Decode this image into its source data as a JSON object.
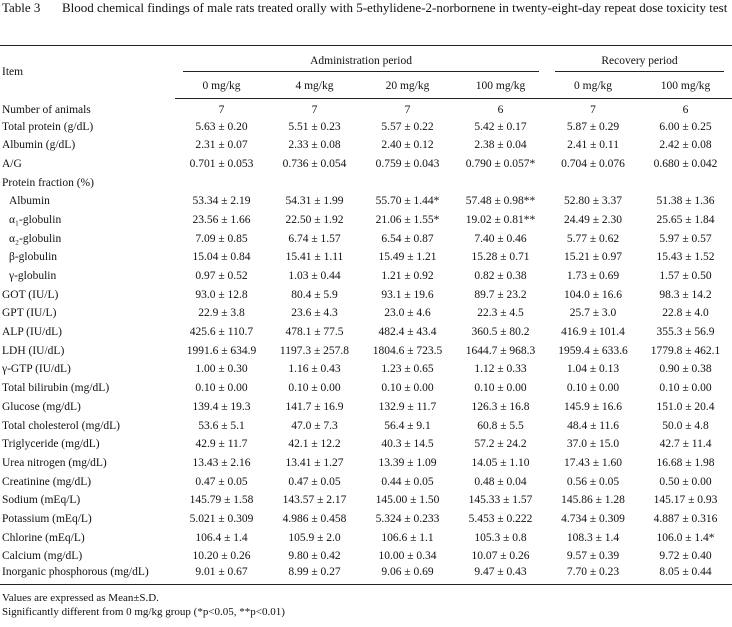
{
  "header": {
    "label": "Table 3",
    "caption": "Blood chemical findings of male rats treated orally with 5-ethylidene-2-norbornene in twenty-eight-day repeat dose toxicity test"
  },
  "table": {
    "item_header": "Item",
    "groups": [
      "Administration period",
      "Recovery period"
    ],
    "doses": [
      "0 mg/kg",
      "4 mg/kg",
      "20 mg/kg",
      "100 mg/kg",
      "0 mg/kg",
      "100 mg/kg"
    ],
    "rows": [
      {
        "label": "Number of animals",
        "cells": [
          "7",
          "7",
          "7",
          "6",
          "7",
          "6"
        ]
      },
      {
        "label": "Total protein (g/dL)",
        "cells": [
          "5.63 ± 0.20",
          "5.51 ± 0.23",
          "5.57 ± 0.22",
          "5.42 ± 0.17",
          "5.87 ± 0.29",
          "6.00 ± 0.25"
        ]
      },
      {
        "label": "Albumin (g/dL)",
        "cells": [
          "2.31 ± 0.07",
          "2.33 ± 0.08",
          "2.40 ± 0.12",
          "2.38 ± 0.04",
          "2.41 ± 0.11",
          "2.42 ± 0.08"
        ]
      },
      {
        "label": "A/G",
        "cells": [
          "0.701 ± 0.053",
          "0.736 ± 0.054",
          "0.759 ± 0.043",
          "0.790 ± 0.057*",
          "0.704 ± 0.076",
          "0.680 ± 0.042"
        ]
      },
      {
        "label": "Protein fraction (%)",
        "cells": [],
        "subrows": [
          {
            "label": "Albumin",
            "cells": [
              "53.34 ± 2.19",
              "54.31 ± 1.99",
              "55.70 ± 1.44*",
              "57.48 ± 0.98**",
              "52.80 ± 3.37",
              "51.38 ± 1.36"
            ]
          },
          {
            "label": "α₁-globulin",
            "cells": [
              "23.56 ± 1.66",
              "22.50 ± 1.92",
              "21.06 ± 1.55*",
              "19.02 ± 0.81**",
              "24.49 ± 2.30",
              "25.65 ± 1.84"
            ]
          },
          {
            "label": "α₂-globulin",
            "cells": [
              "7.09 ± 0.85",
              "6.74 ± 1.57",
              "6.54 ± 0.87",
              "7.40 ± 0.46",
              "5.77 ± 0.62",
              "5.97 ± 0.57"
            ]
          },
          {
            "label": "β-globulin",
            "cells": [
              "15.04 ± 0.84",
              "15.41 ± 1.11",
              "15.49 ± 1.21",
              "15.28 ± 0.71",
              "15.21 ± 0.97",
              "15.43 ± 1.52"
            ]
          },
          {
            "label": "γ-globulin",
            "cells": [
              "0.97 ± 0.52",
              "1.03 ± 0.44",
              "1.21 ± 0.92",
              "0.82 ± 0.38",
              "1.73 ± 0.69",
              "1.57 ± 0.50"
            ]
          }
        ]
      },
      {
        "label": "GOT (IU/L)",
        "cells": [
          "93.0 ± 12.8",
          "80.4 ± 5.9",
          "93.1 ± 19.6",
          "89.7 ± 23.2",
          "104.0 ± 16.6",
          "98.3 ± 14.2"
        ]
      },
      {
        "label": "GPT (IU/L)",
        "cells": [
          "22.9 ± 3.8",
          "23.6 ± 4.3",
          "23.0 ± 4.6",
          "22.3 ± 4.5",
          "25.7 ± 3.0",
          "22.8 ± 4.0"
        ]
      },
      {
        "label": "ALP (IU/dL)",
        "cells": [
          "425.6 ± 110.7",
          "478.1 ± 77.5",
          "482.4 ± 43.4",
          "360.5 ± 80.2",
          "416.9 ± 101.4",
          "355.3 ± 56.9"
        ]
      },
      {
        "label": "LDH (IU/dL)",
        "cells": [
          "1991.6 ± 634.9",
          "1197.3 ± 257.8",
          "1804.6 ± 723.5",
          "1644.7 ± 968.3",
          "1959.4 ± 633.6",
          "1779.8 ± 462.1"
        ]
      },
      {
        "label": "γ-GTP (IU/dL)",
        "cells": [
          "1.00 ± 0.30",
          "1.16 ± 0.43",
          "1.23 ± 0.65",
          "1.12 ± 0.33",
          "1.04 ± 0.13",
          "0.90 ± 0.38"
        ]
      },
      {
        "label": "Total bilirubin (mg/dL)",
        "cells": [
          "0.10 ± 0.00",
          "0.10 ± 0.00",
          "0.10 ± 0.00",
          "0.10 ± 0.00",
          "0.10 ± 0.00",
          "0.10 ± 0.00"
        ]
      },
      {
        "label": "Glucose (mg/dL)",
        "cells": [
          "139.4 ± 19.3",
          "141.7 ± 16.9",
          "132.9 ± 11.7",
          "126.3 ± 16.8",
          "145.9 ± 16.6",
          "151.0 ± 20.4"
        ]
      },
      {
        "label": "Total cholesterol (mg/dL)",
        "cells": [
          "53.6 ± 5.1",
          "47.0 ± 7.3",
          "56.4 ± 9.1",
          "60.8 ± 5.5",
          "48.4 ± 11.6",
          "50.0 ± 4.8"
        ]
      },
      {
        "label": "Triglyceride (mg/dL)",
        "cells": [
          "42.9 ± 11.7",
          "42.1 ± 12.2",
          "40.3 ± 14.5",
          "57.2 ± 24.2",
          "37.0 ± 15.0",
          "42.7 ± 11.4"
        ]
      },
      {
        "label": "Urea nitrogen (mg/dL)",
        "cells": [
          "13.43 ± 2.16",
          "13.41 ± 1.27",
          "13.39 ± 1.09",
          "14.05 ± 1.10",
          "17.43 ± 1.60",
          "16.68 ± 1.98"
        ]
      },
      {
        "label": "Creatinine (mg/dL)",
        "cells": [
          "0.47 ± 0.05",
          "0.47 ± 0.05",
          "0.44 ± 0.05",
          "0.48 ± 0.04",
          "0.56 ± 0.05",
          "0.50 ± 0.00"
        ]
      },
      {
        "label": "Sodium (mEq/L)",
        "cells": [
          "145.79 ± 1.58",
          "143.57 ± 2.17",
          "145.00 ± 1.50",
          "145.33 ± 1.57",
          "145.86 ± 1.28",
          "145.17 ± 0.93"
        ]
      },
      {
        "label": "Potassium (mEq/L)",
        "cells": [
          "5.021 ± 0.309",
          "4.986 ± 0.458",
          "5.324 ± 0.233",
          "5.453 ± 0.222",
          "4.734 ± 0.309",
          "4.887 ± 0.316"
        ]
      },
      {
        "label": "Chlorine (mEq/L)",
        "cells": [
          "106.4 ± 1.4",
          "105.9 ± 2.0",
          "106.6 ± 1.1",
          "105.3 ± 0.8",
          "108.3 ± 1.4",
          "106.0 ± 1.4*"
        ]
      },
      {
        "label": "Calcium (mg/dL)",
        "cells": [
          "10.20 ± 0.26",
          "9.80 ± 0.42",
          "10.00 ± 0.34",
          "10.07 ± 0.26",
          "9.57 ± 0.39",
          "9.72 ± 0.40"
        ]
      },
      {
        "label": "Inorganic phosphorous (mg/dL)",
        "cells": [
          "9.01 ± 0.67",
          "8.99 ± 0.27",
          "9.06 ± 0.69",
          "9.47 ± 0.43",
          "7.70 ± 0.23",
          "8.05 ± 0.44"
        ]
      }
    ]
  },
  "footnotes": [
    "Values are expressed as Mean±S.D.",
    "Significantly different from 0 mg/kg group (*p<0.05, **p<0.01)"
  ]
}
